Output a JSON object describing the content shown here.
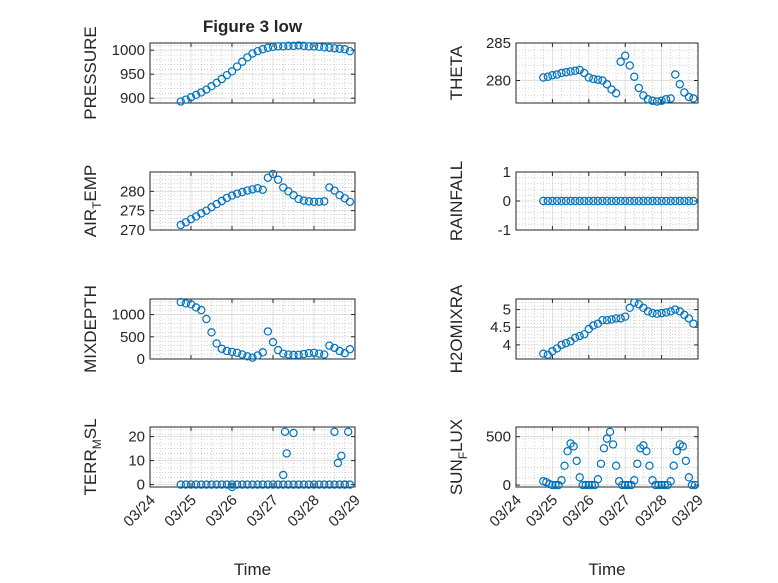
{
  "figure": {
    "title": "Figure 3 low"
  },
  "chart_data": [
    {
      "id": "pressure",
      "type": "scatter",
      "title": "Figure 3 low",
      "ylabel": "PRESSURE",
      "xlabel": "",
      "xlim": [
        "03/24",
        "03/29"
      ],
      "ylim": [
        890,
        1015
      ],
      "yticks": [
        {
          "v": 900,
          "label": "900"
        },
        {
          "v": 950,
          "label": "950"
        },
        {
          "v": 1000,
          "label": "1000"
        }
      ],
      "xticks": [
        "03/24",
        "03/25",
        "03/26",
        "03/27",
        "03/28",
        "03/29"
      ],
      "show_xtick_labels": false,
      "grid": true,
      "x": [
        "03/24 18:00",
        "03/24 21:00",
        "03/25 00:00",
        "03/25 03:00",
        "03/25 06:00",
        "03/25 09:00",
        "03/25 12:00",
        "03/25 15:00",
        "03/25 18:00",
        "03/25 21:00",
        "03/26 00:00",
        "03/26 03:00",
        "03/26 06:00",
        "03/26 09:00",
        "03/26 12:00",
        "03/26 15:00",
        "03/26 18:00",
        "03/26 21:00",
        "03/27 00:00",
        "03/27 03:00",
        "03/27 06:00",
        "03/27 09:00",
        "03/27 12:00",
        "03/27 15:00",
        "03/27 18:00",
        "03/27 21:00",
        "03/28 00:00",
        "03/28 03:00",
        "03/28 06:00",
        "03/28 09:00",
        "03/28 12:00",
        "03/28 15:00",
        "03/28 18:00",
        "03/28 21:00"
      ],
      "y": [
        893,
        897,
        902,
        907,
        912,
        918,
        925,
        932,
        940,
        948,
        956,
        966,
        976,
        985,
        993,
        998,
        1002,
        1005,
        1007,
        1008,
        1008,
        1009,
        1009,
        1010,
        1009,
        1008,
        1008,
        1007,
        1006,
        1005,
        1004,
        1003,
        1002,
        998
      ]
    },
    {
      "id": "theta",
      "type": "scatter",
      "ylabel": "THETA",
      "xlabel": "",
      "xlim": [
        "03/24",
        "03/29"
      ],
      "ylim": [
        277,
        285
      ],
      "yticks": [
        {
          "v": 280,
          "label": "280"
        },
        {
          "v": 285,
          "label": "285"
        }
      ],
      "xticks": [
        "03/24",
        "03/25",
        "03/26",
        "03/27",
        "03/28",
        "03/29"
      ],
      "show_xtick_labels": false,
      "grid": true,
      "x": [
        "03/24 18:00",
        "03/24 21:00",
        "03/25 00:00",
        "03/25 03:00",
        "03/25 06:00",
        "03/25 09:00",
        "03/25 12:00",
        "03/25 15:00",
        "03/25 18:00",
        "03/25 21:00",
        "03/26 00:00",
        "03/26 03:00",
        "03/26 06:00",
        "03/26 09:00",
        "03/26 12:00",
        "03/26 15:00",
        "03/26 18:00",
        "03/26 21:00",
        "03/27 00:00",
        "03/27 03:00",
        "03/27 06:00",
        "03/27 09:00",
        "03/27 12:00",
        "03/27 15:00",
        "03/27 18:00",
        "03/27 21:00",
        "03/28 00:00",
        "03/28 03:00",
        "03/28 06:00",
        "03/28 09:00",
        "03/28 12:00",
        "03/28 15:00",
        "03/28 18:00",
        "03/28 21:00"
      ],
      "y": [
        280.4,
        280.5,
        280.7,
        280.8,
        281.0,
        281.1,
        281.2,
        281.3,
        281.4,
        281.0,
        280.4,
        280.2,
        280.1,
        280.0,
        279.5,
        278.8,
        278.3,
        282.5,
        283.3,
        282.0,
        280.5,
        279.0,
        278.0,
        277.5,
        277.3,
        277.2,
        277.3,
        277.5,
        277.6,
        280.8,
        279.5,
        278.4,
        277.8,
        277.6
      ]
    },
    {
      "id": "air_temp",
      "type": "scatter",
      "ylabel": "AIR",
      "ylabel_sub": "T",
      "ylabel_rest": "EMP",
      "xlabel": "",
      "xlim": [
        "03/24",
        "03/29"
      ],
      "ylim": [
        270,
        285
      ],
      "yticks": [
        {
          "v": 270,
          "label": "270"
        },
        {
          "v": 275,
          "label": "275"
        },
        {
          "v": 280,
          "label": "280"
        }
      ],
      "xticks": [
        "03/24",
        "03/25",
        "03/26",
        "03/27",
        "03/28",
        "03/29"
      ],
      "show_xtick_labels": false,
      "grid": true,
      "x": [
        "03/24 18:00",
        "03/24 21:00",
        "03/25 00:00",
        "03/25 03:00",
        "03/25 06:00",
        "03/25 09:00",
        "03/25 12:00",
        "03/25 15:00",
        "03/25 18:00",
        "03/25 21:00",
        "03/26 00:00",
        "03/26 03:00",
        "03/26 06:00",
        "03/26 09:00",
        "03/26 12:00",
        "03/26 15:00",
        "03/26 18:00",
        "03/26 21:00",
        "03/27 00:00",
        "03/27 03:00",
        "03/27 06:00",
        "03/27 09:00",
        "03/27 12:00",
        "03/27 15:00",
        "03/27 18:00",
        "03/27 21:00",
        "03/28 00:00",
        "03/28 03:00",
        "03/28 06:00",
        "03/28 09:00",
        "03/28 12:00",
        "03/28 15:00",
        "03/28 18:00",
        "03/28 21:00"
      ],
      "y": [
        271.3,
        272.0,
        272.8,
        273.5,
        274.3,
        275.0,
        275.9,
        276.7,
        277.5,
        278.3,
        278.9,
        279.4,
        279.8,
        280.2,
        280.5,
        280.8,
        280.4,
        283.5,
        284.5,
        283.0,
        281.0,
        280.0,
        279.0,
        278.0,
        277.6,
        277.4,
        277.3,
        277.3,
        277.4,
        281.0,
        280.2,
        279.0,
        278.2,
        277.3
      ]
    },
    {
      "id": "rainfall",
      "type": "scatter",
      "ylabel": "RAINFALL",
      "xlabel": "",
      "xlim": [
        "03/24",
        "03/29"
      ],
      "ylim": [
        -1,
        1
      ],
      "yticks": [
        {
          "v": -1,
          "label": "-1"
        },
        {
          "v": 0,
          "label": "0"
        },
        {
          "v": 1,
          "label": "1"
        }
      ],
      "xticks": [
        "03/24",
        "03/25",
        "03/26",
        "03/27",
        "03/28",
        "03/29"
      ],
      "show_xtick_labels": false,
      "grid": true,
      "x": [
        "03/24 18:00",
        "03/24 21:00",
        "03/25 00:00",
        "03/25 03:00",
        "03/25 06:00",
        "03/25 09:00",
        "03/25 12:00",
        "03/25 15:00",
        "03/25 18:00",
        "03/25 21:00",
        "03/26 00:00",
        "03/26 03:00",
        "03/26 06:00",
        "03/26 09:00",
        "03/26 12:00",
        "03/26 15:00",
        "03/26 18:00",
        "03/26 21:00",
        "03/27 00:00",
        "03/27 03:00",
        "03/27 06:00",
        "03/27 09:00",
        "03/27 12:00",
        "03/27 15:00",
        "03/27 18:00",
        "03/27 21:00",
        "03/28 00:00",
        "03/28 03:00",
        "03/28 06:00",
        "03/28 09:00",
        "03/28 12:00",
        "03/28 15:00",
        "03/28 18:00",
        "03/28 21:00"
      ],
      "y": [
        0,
        0,
        0,
        0,
        0,
        0,
        0,
        0,
        0,
        0,
        0,
        0,
        0,
        0,
        0,
        0,
        0,
        0,
        0,
        0,
        0,
        0,
        0,
        0,
        0,
        0,
        0,
        0,
        0,
        0,
        0,
        0,
        0,
        0
      ]
    },
    {
      "id": "mixdepth",
      "type": "scatter",
      "ylabel": "MIXDEPTH",
      "xlabel": "",
      "xlim": [
        "03/24",
        "03/29"
      ],
      "ylim": [
        0,
        1350
      ],
      "yticks": [
        {
          "v": 0,
          "label": "0"
        },
        {
          "v": 500,
          "label": "500"
        },
        {
          "v": 1000,
          "label": "1000"
        }
      ],
      "xticks": [
        "03/24",
        "03/25",
        "03/26",
        "03/27",
        "03/28",
        "03/29"
      ],
      "show_xtick_labels": false,
      "grid": true,
      "x": [
        "03/24 18:00",
        "03/24 21:00",
        "03/25 00:00",
        "03/25 03:00",
        "03/25 06:00",
        "03/25 09:00",
        "03/25 12:00",
        "03/25 15:00",
        "03/25 18:00",
        "03/25 21:00",
        "03/26 00:00",
        "03/26 03:00",
        "03/26 06:00",
        "03/26 09:00",
        "03/26 12:00",
        "03/26 15:00",
        "03/26 18:00",
        "03/26 21:00",
        "03/27 00:00",
        "03/27 03:00",
        "03/27 06:00",
        "03/27 09:00",
        "03/27 12:00",
        "03/27 15:00",
        "03/27 18:00",
        "03/27 21:00",
        "03/28 00:00",
        "03/28 03:00",
        "03/28 06:00",
        "03/28 09:00",
        "03/28 12:00",
        "03/28 15:00",
        "03/28 18:00",
        "03/28 21:00"
      ],
      "y": [
        1280,
        1250,
        1230,
        1160,
        1100,
        900,
        600,
        350,
        230,
        180,
        160,
        140,
        100,
        60,
        30,
        80,
        150,
        620,
        380,
        200,
        120,
        100,
        90,
        95,
        110,
        130,
        140,
        120,
        100,
        300,
        250,
        180,
        130,
        220
      ]
    },
    {
      "id": "h2omixra",
      "type": "scatter",
      "ylabel": "H2OMIXRA",
      "xlabel": "",
      "xlim": [
        "03/24",
        "03/29"
      ],
      "ylim": [
        3.6,
        5.3
      ],
      "yticks": [
        {
          "v": 4,
          "label": "4"
        },
        {
          "v": 4.5,
          "label": "4.5"
        },
        {
          "v": 5,
          "label": "5"
        }
      ],
      "xticks": [
        "03/24",
        "03/25",
        "03/26",
        "03/27",
        "03/28",
        "03/29"
      ],
      "show_xtick_labels": false,
      "grid": true,
      "x": [
        "03/24 18:00",
        "03/24 21:00",
        "03/25 00:00",
        "03/25 03:00",
        "03/25 06:00",
        "03/25 09:00",
        "03/25 12:00",
        "03/25 15:00",
        "03/25 18:00",
        "03/25 21:00",
        "03/26 00:00",
        "03/26 03:00",
        "03/26 06:00",
        "03/26 09:00",
        "03/26 12:00",
        "03/26 15:00",
        "03/26 18:00",
        "03/26 21:00",
        "03/27 00:00",
        "03/27 03:00",
        "03/27 06:00",
        "03/27 09:00",
        "03/27 12:00",
        "03/27 15:00",
        "03/27 18:00",
        "03/27 21:00",
        "03/28 00:00",
        "03/28 03:00",
        "03/28 06:00",
        "03/28 09:00",
        "03/28 12:00",
        "03/28 15:00",
        "03/28 18:00",
        "03/28 21:00"
      ],
      "y": [
        3.75,
        3.72,
        3.82,
        3.9,
        4.0,
        4.05,
        4.1,
        4.2,
        4.25,
        4.3,
        4.45,
        4.55,
        4.6,
        4.7,
        4.7,
        4.72,
        4.75,
        4.75,
        4.8,
        5.05,
        5.2,
        5.15,
        5.05,
        4.95,
        4.9,
        4.88,
        4.9,
        4.92,
        4.95,
        5.0,
        4.95,
        4.85,
        4.75,
        4.6
      ]
    },
    {
      "id": "terr_msl",
      "type": "scatter",
      "ylabel": "TERR",
      "ylabel_sub": "M",
      "ylabel_rest": "SL",
      "xlabel": "Time",
      "xlim": [
        "03/24",
        "03/29"
      ],
      "ylim": [
        -1,
        24
      ],
      "yticks": [
        {
          "v": 0,
          "label": "0"
        },
        {
          "v": 10,
          "label": "10"
        },
        {
          "v": 20,
          "label": "20"
        }
      ],
      "xticks": [
        "03/24",
        "03/25",
        "03/26",
        "03/27",
        "03/28",
        "03/29"
      ],
      "show_xtick_labels": true,
      "grid": true,
      "x": [
        "03/24 18:00",
        "03/24 21:00",
        "03/25 00:00",
        "03/25 03:00",
        "03/25 06:00",
        "03/25 09:00",
        "03/25 12:00",
        "03/25 15:00",
        "03/25 18:00",
        "03/25 21:00",
        "03/26 00:00",
        "03/26 03:00",
        "03/26 06:00",
        "03/26 09:00",
        "03/26 12:00",
        "03/26 15:00",
        "03/26 18:00",
        "03/26 21:00",
        "03/27 00:00",
        "03/27 03:00",
        "03/27 06:00",
        "03/27 09:00",
        "03/27 12:00",
        "03/27 15:00",
        "03/27 18:00",
        "03/27 21:00",
        "03/28 00:00",
        "03/28 03:00",
        "03/28 06:00",
        "03/28 09:00",
        "03/28 12:00",
        "03/28 15:00",
        "03/28 18:00",
        "03/28 21:00",
        "03/27 06:00",
        "03/27 07:00",
        "03/27 08:00",
        "03/27 12:00",
        "03/28 12:00",
        "03/28 14:00",
        "03/28 16:00",
        "03/28 18:00",
        "03/28 20:00",
        "03/26 00:00"
      ],
      "y": [
        0,
        0,
        0,
        0,
        0,
        0,
        0,
        0,
        0,
        0,
        0,
        0,
        0,
        0,
        0,
        0,
        0,
        0,
        0,
        0,
        0,
        0,
        0,
        0,
        0,
        0,
        0,
        0,
        0,
        0,
        0,
        0,
        0,
        0,
        4,
        22,
        13,
        21.5,
        22,
        9,
        12,
        0,
        22,
        -1
      ]
    },
    {
      "id": "sun_flux",
      "type": "scatter",
      "ylabel": "SUN",
      "ylabel_sub": "F",
      "ylabel_rest": "LUX",
      "xlabel": "Time",
      "xlim": [
        "03/24",
        "03/29"
      ],
      "ylim": [
        -20,
        600
      ],
      "yticks": [
        {
          "v": 0,
          "label": "0"
        },
        {
          "v": 500,
          "label": "500"
        }
      ],
      "xticks": [
        "03/24",
        "03/25",
        "03/26",
        "03/27",
        "03/28",
        "03/29"
      ],
      "show_xtick_labels": true,
      "grid": true,
      "x": [
        "03/24 18:00",
        "03/24 20:00",
        "03/24 22:00",
        "03/25 00:00",
        "03/25 02:00",
        "03/25 04:00",
        "03/25 06:00",
        "03/25 08:00",
        "03/25 10:00",
        "03/25 12:00",
        "03/25 14:00",
        "03/25 16:00",
        "03/25 18:00",
        "03/25 20:00",
        "03/25 22:00",
        "03/26 00:00",
        "03/26 02:00",
        "03/26 04:00",
        "03/26 06:00",
        "03/26 08:00",
        "03/26 10:00",
        "03/26 12:00",
        "03/26 14:00",
        "03/26 16:00",
        "03/26 18:00",
        "03/26 20:00",
        "03/26 22:00",
        "03/27 00:00",
        "03/27 02:00",
        "03/27 04:00",
        "03/27 06:00",
        "03/27 08:00",
        "03/27 10:00",
        "03/27 12:00",
        "03/27 14:00",
        "03/27 16:00",
        "03/27 18:00",
        "03/27 20:00",
        "03/27 22:00",
        "03/28 00:00",
        "03/28 02:00",
        "03/28 04:00",
        "03/28 06:00",
        "03/28 08:00",
        "03/28 10:00",
        "03/28 12:00",
        "03/28 14:00",
        "03/28 16:00",
        "03/28 18:00",
        "03/28 20:00",
        "03/28 22:00"
      ],
      "y": [
        40,
        30,
        10,
        0,
        0,
        0,
        50,
        200,
        350,
        430,
        400,
        250,
        80,
        0,
        0,
        0,
        0,
        0,
        60,
        220,
        380,
        480,
        550,
        420,
        200,
        40,
        0,
        0,
        0,
        0,
        50,
        220,
        380,
        410,
        350,
        200,
        50,
        0,
        0,
        0,
        0,
        0,
        40,
        200,
        350,
        420,
        400,
        250,
        80,
        0,
        0
      ]
    }
  ]
}
